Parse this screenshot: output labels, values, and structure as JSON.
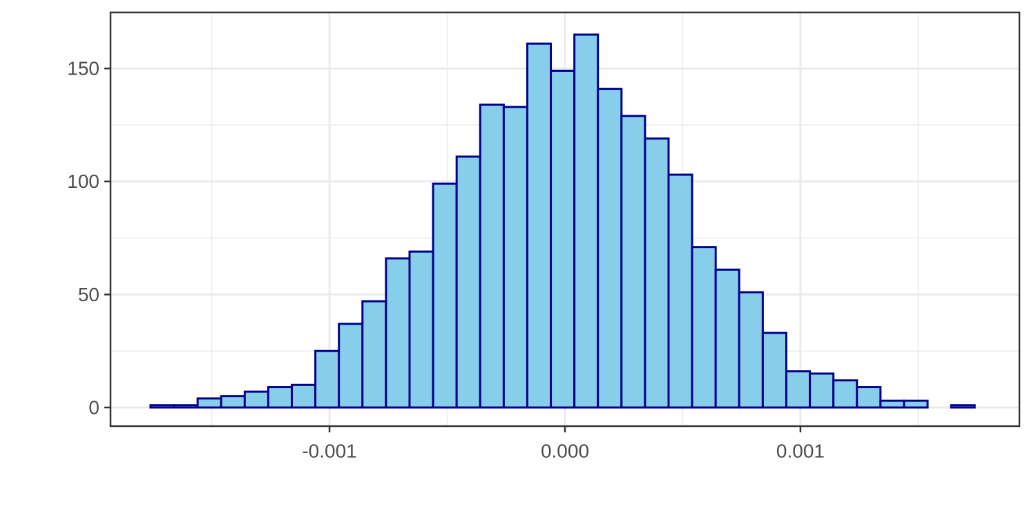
{
  "chart_data": {
    "type": "histogram",
    "bins": [
      -0.00176,
      -0.00166,
      -0.00156,
      -0.00146,
      -0.00136,
      -0.00126,
      -0.00116,
      -0.00106,
      -0.00096,
      -0.00086,
      -0.00076,
      -0.00066,
      -0.00056,
      -0.00046,
      -0.00036,
      -0.00026,
      -0.00016,
      -6e-05,
      4e-05,
      0.00014,
      0.00024,
      0.00034,
      0.00044,
      0.00054,
      0.00064,
      0.00074,
      0.00084,
      0.00094,
      0.00104,
      0.00114,
      0.00124,
      0.00134,
      0.00144,
      0.00154,
      0.00164,
      0.00174
    ],
    "values": [
      1,
      1,
      4,
      5,
      7,
      9,
      10,
      25,
      37,
      47,
      66,
      69,
      99,
      111,
      134,
      133,
      161,
      149,
      165,
      141,
      129,
      119,
      103,
      71,
      61,
      51,
      33,
      16,
      15,
      12,
      9,
      3,
      3,
      0,
      1
    ],
    "color": "#87ceeb",
    "edge_color": "#00008b",
    "xlim": [
      -0.00193,
      0.00193
    ],
    "xticks": [
      -0.001,
      {
        "value": 0,
        "label": "0.000"
      },
      0.001
    ],
    "xminor": [
      -0.0015,
      -0.0005,
      0.0005,
      0.0015
    ],
    "ylim": [
      -8.25,
      174.8
    ],
    "yticks": [
      0,
      50,
      100,
      150
    ],
    "yminor": [
      25,
      75,
      125
    ],
    "grid": true
  }
}
